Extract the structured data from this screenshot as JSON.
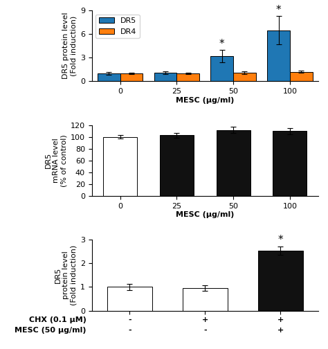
{
  "chart_data": [
    {
      "type": "bar",
      "categories": [
        "0",
        "25",
        "50",
        "100"
      ],
      "series": [
        {
          "name": "DR5",
          "values": [
            1.0,
            1.1,
            3.2,
            6.5
          ],
          "errors": [
            0.15,
            0.2,
            0.8,
            1.8
          ]
        },
        {
          "name": "DR4",
          "values": [
            1.0,
            1.0,
            1.1,
            1.2
          ],
          "errors": [
            0.1,
            0.1,
            0.15,
            0.15
          ]
        }
      ],
      "ylabel": "DR5 protein level\n(Fold induction)",
      "xlabel": "MESC (μg/ml)",
      "ylim": [
        0,
        9
      ],
      "yticks": [
        0,
        3,
        6,
        9
      ],
      "legend": "upper left",
      "annotations": [
        {
          "text": "*",
          "category": "50",
          "series": "DR5"
        },
        {
          "text": "*",
          "category": "100",
          "series": "DR5"
        }
      ]
    },
    {
      "type": "bar",
      "categories": [
        "0",
        "25",
        "50",
        "100"
      ],
      "values": [
        100,
        103,
        112,
        110
      ],
      "errors": [
        3,
        4,
        5,
        5
      ],
      "colors": [
        "#ffffff",
        "#111111",
        "#111111",
        "#111111"
      ],
      "ylabel": "DR5\nmRNA level\n(% of control)",
      "xlabel": "MESC (μg/ml)",
      "ylim": [
        0,
        120
      ],
      "yticks": [
        0,
        20,
        40,
        60,
        80,
        100,
        120
      ]
    },
    {
      "type": "bar",
      "values": [
        1.0,
        0.95,
        2.55
      ],
      "errors": [
        0.12,
        0.12,
        0.18
      ],
      "colors": [
        "#ffffff",
        "#ffffff",
        "#111111"
      ],
      "ylabel": "DR5\nprotein level\n(Fold induction)",
      "x_label_rows": [
        {
          "label": "CHX (0.1 μM)",
          "labels": [
            "-",
            "+",
            "+"
          ]
        },
        {
          "label": "MESC (50 μg/ml)",
          "labels": [
            "-",
            "-",
            "+"
          ]
        }
      ],
      "ylim": [
        0,
        3
      ],
      "yticks": [
        0,
        1,
        2,
        3
      ],
      "annotations": [
        {
          "text": "*",
          "index": 2
        }
      ]
    }
  ]
}
